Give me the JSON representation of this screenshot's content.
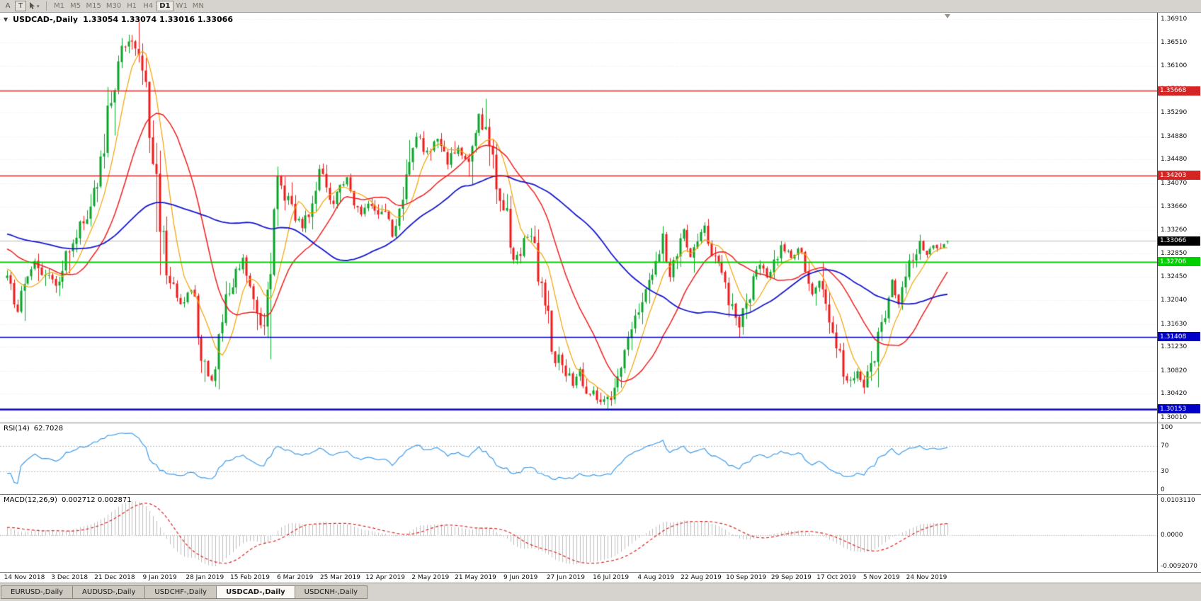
{
  "icons": {
    "collapse": "▼",
    "dropdown": "▾"
  },
  "toolbar": {
    "tool_a": "A",
    "tool_t": "T",
    "timeframes": [
      "M1",
      "M5",
      "M15",
      "M30",
      "H1",
      "H4",
      "D1",
      "W1",
      "MN"
    ],
    "active_timeframe": "D1"
  },
  "chart": {
    "title": "USDCAD-,Daily",
    "ohlc_text": "1.33054 1.33074 1.33016 1.33066"
  },
  "rsi_panel": {
    "label": "RSI(14)",
    "value": "62.7028"
  },
  "macd_panel": {
    "label": "MACD(12,26,9)",
    "values": "0.002712 0.002871"
  },
  "tab_bar": {
    "tabs": [
      "EURUSD-,Daily",
      "AUDUSD-,Daily",
      "USDCHF-,Daily",
      "USDCAD-,Daily",
      "USDCNH-,Daily"
    ],
    "active_tab": "USDCAD-,Daily"
  },
  "chart_data": {
    "type": "candlestick",
    "symbol": "USDCAD-",
    "period": "Daily",
    "last_ohlc": {
      "open": 1.33054,
      "high": 1.33074,
      "low": 1.33016,
      "close": 1.33066
    },
    "candle_count": 272,
    "price_axis": {
      "top": 1.3702,
      "bottom": 1.2992,
      "ticks": [
        "1.36910",
        "1.36510",
        "1.36100",
        "1.35690",
        "1.35290",
        "1.34880",
        "1.34480",
        "1.34070",
        "1.33660",
        "1.33260",
        "1.32850",
        "1.32450",
        "1.32040",
        "1.31630",
        "1.31230",
        "1.30820",
        "1.30420",
        "1.30010"
      ]
    },
    "current_price": {
      "value": 1.33066,
      "label": "1.33066",
      "badge_color": "#000000",
      "line_color": "#b0b0b0"
    },
    "sr_lines": [
      {
        "price": 1.35668,
        "label": "1.35668",
        "color": "#d42424",
        "width": 1.4
      },
      {
        "price": 1.34203,
        "label": "1.34203",
        "color": "#d42424",
        "width": 1.4
      },
      {
        "price": 1.32706,
        "label": "1.32706",
        "color": "#00d000",
        "width": 2.0
      },
      {
        "price": 1.31408,
        "label": "1.31408",
        "color": "#0000c8",
        "width": 1.6
      },
      {
        "price": 1.30153,
        "label": "1.30153",
        "color": "#0000c8",
        "width": 2.6
      }
    ],
    "moving_averages": [
      {
        "period": 8,
        "color": "#f2a200",
        "width": 1.2,
        "seed": 1.326
      },
      {
        "period": 21,
        "color": "#ee1e1e",
        "width": 1.5,
        "seed": 1.3295
      },
      {
        "period": 55,
        "color": "#1616cc",
        "width": 1.8,
        "seed": 1.332
      }
    ],
    "candle_colors": {
      "up": "#0aa32a",
      "down": "#ee1a1a"
    },
    "price_anchors": [
      [
        0,
        1.3242
      ],
      [
        2,
        1.3205
      ],
      [
        3,
        1.3185
      ],
      [
        5,
        1.325
      ],
      [
        8,
        1.3268
      ],
      [
        11,
        1.3242
      ],
      [
        14,
        1.3232
      ],
      [
        18,
        1.3295
      ],
      [
        21,
        1.333
      ],
      [
        24,
        1.3365
      ],
      [
        27,
        1.344
      ],
      [
        30,
        1.356
      ],
      [
        33,
        1.3645
      ],
      [
        35,
        1.3655
      ],
      [
        37,
        1.364
      ],
      [
        40,
        1.356
      ],
      [
        42,
        1.347
      ],
      [
        44,
        1.336
      ],
      [
        46,
        1.327
      ],
      [
        48,
        1.3215
      ],
      [
        51,
        1.3195
      ],
      [
        53,
        1.3235
      ],
      [
        55,
        1.314
      ],
      [
        57,
        1.3085
      ],
      [
        59,
        1.3075
      ],
      [
        61,
        1.313
      ],
      [
        63,
        1.319
      ],
      [
        65,
        1.324
      ],
      [
        68,
        1.327
      ],
      [
        70,
        1.3235
      ],
      [
        72,
        1.317
      ],
      [
        74,
        1.315
      ],
      [
        76,
        1.33
      ],
      [
        78,
        1.343
      ],
      [
        80,
        1.338
      ],
      [
        83,
        1.335
      ],
      [
        85,
        1.333
      ],
      [
        88,
        1.338
      ],
      [
        90,
        1.343
      ],
      [
        92,
        1.34
      ],
      [
        94,
        1.337
      ],
      [
        96,
        1.3395
      ],
      [
        98,
        1.342
      ],
      [
        100,
        1.338
      ],
      [
        102,
        1.335
      ],
      [
        104,
        1.337
      ],
      [
        106,
        1.335
      ],
      [
        109,
        1.335
      ],
      [
        111,
        1.332
      ],
      [
        113,
        1.334
      ],
      [
        115,
        1.342
      ],
      [
        118,
        1.349
      ],
      [
        121,
        1.346
      ],
      [
        124,
        1.348
      ],
      [
        127,
        1.3445
      ],
      [
        130,
        1.347
      ],
      [
        133,
        1.3445
      ],
      [
        136,
        1.352
      ],
      [
        138,
        1.349
      ],
      [
        140,
        1.345
      ],
      [
        142,
        1.339
      ],
      [
        144,
        1.335
      ],
      [
        146,
        1.328
      ],
      [
        148,
        1.329
      ],
      [
        150,
        1.332
      ],
      [
        152,
        1.328
      ],
      [
        154,
        1.322
      ],
      [
        156,
        1.316
      ],
      [
        158,
        1.311
      ],
      [
        161,
        1.3085
      ],
      [
        163,
        1.306
      ],
      [
        165,
        1.308
      ],
      [
        167,
        1.305
      ],
      [
        169,
        1.304
      ],
      [
        172,
        1.303
      ],
      [
        175,
        1.304
      ],
      [
        177,
        1.308
      ],
      [
        179,
        1.312
      ],
      [
        181,
        1.316
      ],
      [
        183,
        1.321
      ],
      [
        185,
        1.324
      ],
      [
        187,
        1.327
      ],
      [
        189,
        1.331
      ],
      [
        191,
        1.325
      ],
      [
        193,
        1.329
      ],
      [
        195,
        1.332
      ],
      [
        197,
        1.328
      ],
      [
        199,
        1.331
      ],
      [
        201,
        1.333
      ],
      [
        203,
        1.329
      ],
      [
        205,
        1.326
      ],
      [
        207,
        1.323
      ],
      [
        209,
        1.318
      ],
      [
        211,
        1.315
      ],
      [
        213,
        1.32
      ],
      [
        215,
        1.3245
      ],
      [
        217,
        1.327
      ],
      [
        219,
        1.324
      ],
      [
        221,
        1.327
      ],
      [
        223,
        1.33
      ],
      [
        226,
        1.328
      ],
      [
        228,
        1.33
      ],
      [
        230,
        1.326
      ],
      [
        232,
        1.322
      ],
      [
        234,
        1.325
      ],
      [
        236,
        1.318
      ],
      [
        239,
        1.313
      ],
      [
        241,
        1.309
      ],
      [
        243,
        1.306
      ],
      [
        245,
        1.308
      ],
      [
        247,
        1.3045
      ],
      [
        249,
        1.309
      ],
      [
        251,
        1.314
      ],
      [
        253,
        1.318
      ],
      [
        255,
        1.323
      ],
      [
        257,
        1.32
      ],
      [
        259,
        1.325
      ],
      [
        261,
        1.328
      ],
      [
        263,
        1.33
      ],
      [
        265,
        1.3285
      ],
      [
        267,
        1.33
      ],
      [
        269,
        1.329
      ],
      [
        271,
        1.33066
      ]
    ],
    "forced_extremes": {
      "peak_index": 35,
      "peak_high": 1.3664,
      "low1_index": 173,
      "low1": 1.3016,
      "low2_index": 247,
      "low2": 1.3042
    },
    "rsi": {
      "period": 14,
      "current": "62.7028",
      "color": "#3d9be9",
      "levels": [
        70,
        30
      ],
      "axis_labels": [
        {
          "label": "100",
          "value": 100
        },
        {
          "label": "70",
          "value": 70
        },
        {
          "label": "30",
          "value": 30
        },
        {
          "label": "0",
          "value": 0
        }
      ]
    },
    "macd": {
      "fast": 12,
      "slow": 26,
      "signal_period": 9,
      "current_macd": "0.002712",
      "current_signal": "0.002871",
      "scale_max": 0.010311,
      "scale_min": -0.009207,
      "hist_color": "#bdbdbd",
      "signal_color": "#e02020",
      "axis_labels": [
        {
          "label": "0.0103110",
          "value": 0.010311
        },
        {
          "label": "0.0000",
          "value": 0
        },
        {
          "label": "-0.0092070",
          "value": -0.009207
        }
      ]
    },
    "dates": [
      "14 Nov 2018",
      "3 Dec 2018",
      "21 Dec 2018",
      "9 Jan 2019",
      "28 Jan 2019",
      "15 Feb 2019",
      "6 Mar 2019",
      "25 Mar 2019",
      "12 Apr 2019",
      "2 May 2019",
      "21 May 2019",
      "9 Jun 2019",
      "27 Jun 2019",
      "16 Jul 2019",
      "4 Aug 2019",
      "22 Aug 2019",
      "10 Sep 2019",
      "29 Sep 2019",
      "17 Oct 2019",
      "5 Nov 2019",
      "24 Nov 2019"
    ],
    "label_candle_start": 5,
    "label_candle_step": 13
  }
}
